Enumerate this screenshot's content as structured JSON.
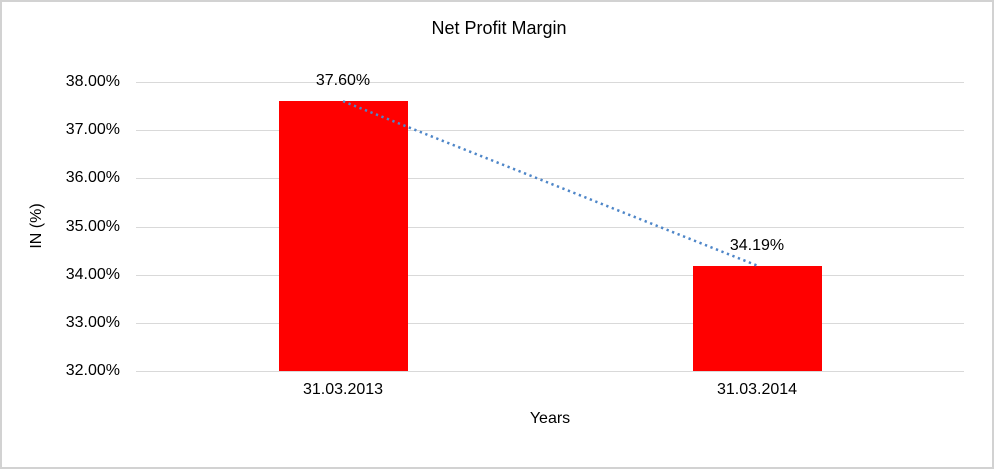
{
  "chart_data": {
    "type": "bar",
    "title": "Net Profit Margin",
    "xlabel": "Years",
    "ylabel": "IN (%)",
    "categories": [
      "31.03.2013",
      "31.03.2014"
    ],
    "values": [
      37.6,
      34.19
    ],
    "data_labels": [
      "37.60%",
      "34.19%"
    ],
    "ylim": [
      32,
      38
    ],
    "ytick_step": 1,
    "ytick_labels": [
      "38.00%",
      "37.00%",
      "36.00%",
      "35.00%",
      "34.00%",
      "33.00%",
      "32.00%"
    ],
    "grid": true,
    "legend_position": "none",
    "bar_color": "#ff0000",
    "gridline_color": "#d9d9d9",
    "trendline": {
      "type": "linear",
      "style": "dotted",
      "color": "#4e86c8"
    }
  }
}
